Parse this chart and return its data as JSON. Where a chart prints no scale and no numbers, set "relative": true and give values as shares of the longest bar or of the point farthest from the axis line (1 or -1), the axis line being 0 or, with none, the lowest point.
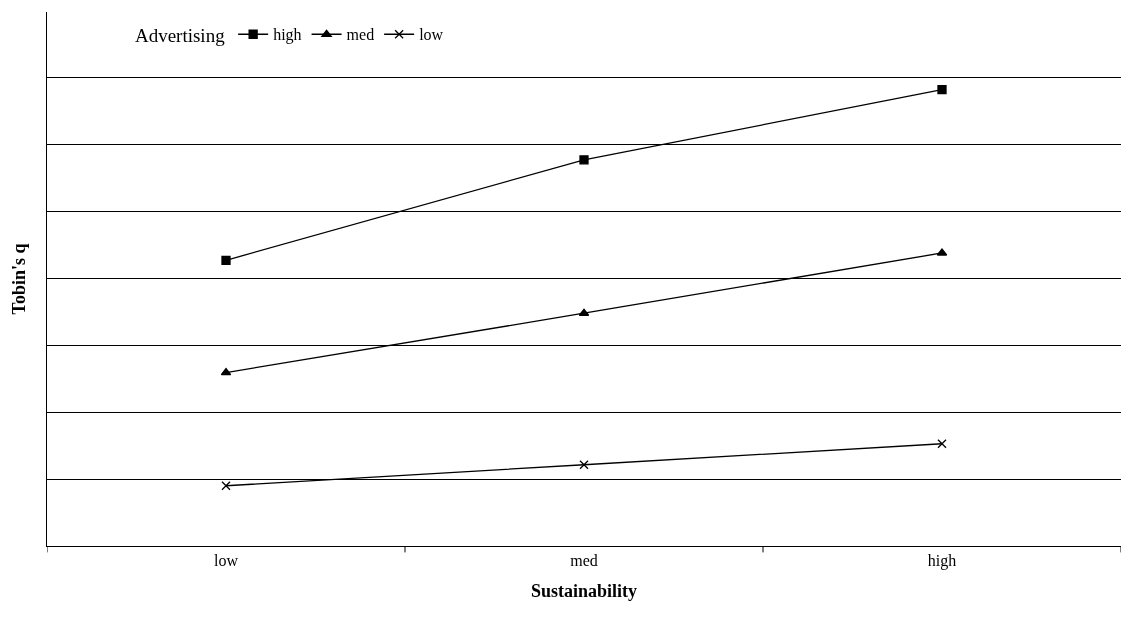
{
  "chart_data": {
    "type": "line",
    "relative": true,
    "xlabel": "Sustainability",
    "ylabel": "Tobin's q",
    "legend_title": "Advertising",
    "legend": "top left",
    "grid": "y",
    "categories": [
      "low",
      "med",
      "high"
    ],
    "series": [
      {
        "name": "high",
        "color": "#000000",
        "marker": "square",
        "values": [
          0.626,
          0.846,
          1.0
        ]
      },
      {
        "name": "med",
        "color": "#000000",
        "marker": "triangle",
        "values": [
          0.38,
          0.51,
          0.642
        ]
      },
      {
        "name": "low",
        "color": "#000000",
        "marker": "cross",
        "values": [
          0.132,
          0.178,
          0.224
        ]
      }
    ]
  }
}
